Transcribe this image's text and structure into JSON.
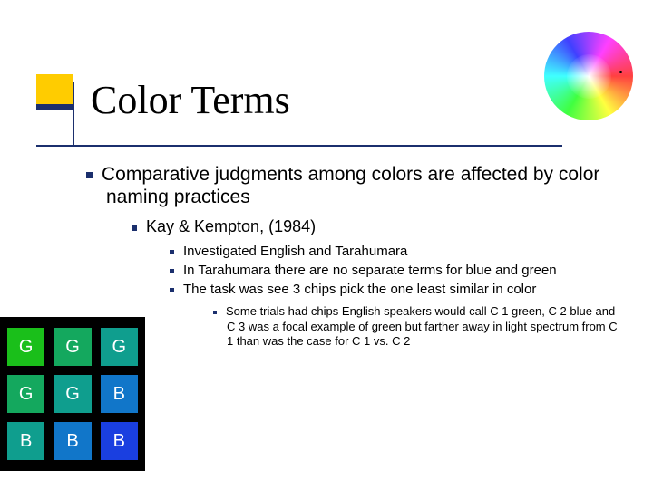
{
  "title": "Color Terms",
  "bullets": {
    "lvl1": "Comparative judgments among colors are affected by color naming practices",
    "lvl2": "Kay & Kempton, (1984)",
    "lvl3a": "Investigated English and Tarahumara",
    "lvl3b": "In Tarahumara there are no separate terms for blue and green",
    "lvl3c": "The task was see 3 chips pick the one least similar in color",
    "lvl4": "Some trials had chips English speakers would call C 1 green, C 2 blue and C 3 was a focal example of green but farther away in light spectrum from C 1 than was the case for C 1 vs. C 2"
  },
  "accent_color": "#1b2f6d",
  "title_square_color": "#ffcc00",
  "chip_grid": {
    "background": "#000000",
    "cells": [
      {
        "label": "G",
        "color": "#1abf1a"
      },
      {
        "label": "G",
        "color": "#14a85e"
      },
      {
        "label": "G",
        "color": "#0f9e8e"
      },
      {
        "label": "G",
        "color": "#14a85e"
      },
      {
        "label": "G",
        "color": "#0f9e8e"
      },
      {
        "label": "B",
        "color": "#1176c9"
      },
      {
        "label": "B",
        "color": "#0f9e8e"
      },
      {
        "label": "B",
        "color": "#1176c9"
      },
      {
        "label": "B",
        "color": "#1a3fe0"
      }
    ]
  }
}
